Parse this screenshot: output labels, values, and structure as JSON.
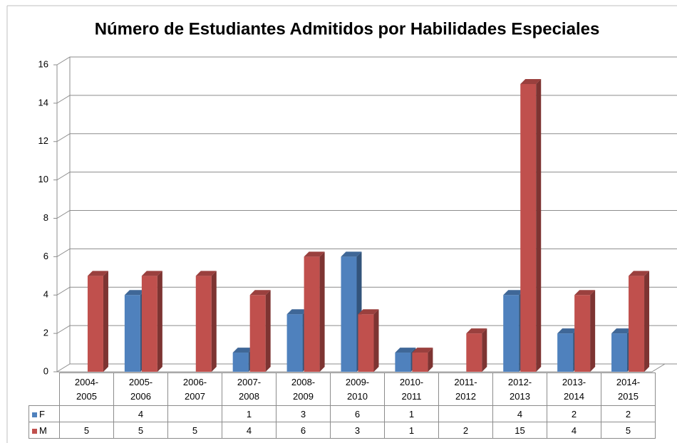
{
  "chart_data": {
    "type": "bar3d",
    "title": "Número de Estudiantes Admitidos por Habilidades Especiales",
    "categories": [
      "2004-2005",
      "2005-2006",
      "2006-2007",
      "2007-2008",
      "2008-2009",
      "2009-2010",
      "2010-2011",
      "2011-2012",
      "2012-2013",
      "2013-2014",
      "2014-2015"
    ],
    "series": [
      {
        "name": "F",
        "color": "#4f81bd",
        "values": [
          null,
          4,
          null,
          1,
          3,
          6,
          1,
          null,
          4,
          2,
          2
        ]
      },
      {
        "name": "M",
        "color": "#c0504d",
        "values": [
          5,
          5,
          5,
          4,
          6,
          3,
          1,
          2,
          15,
          4,
          5
        ]
      }
    ],
    "ylim": [
      0,
      16
    ],
    "yticks": [
      0,
      2,
      4,
      6,
      8,
      10,
      12,
      14,
      16
    ],
    "grid": true,
    "data_table": true
  }
}
